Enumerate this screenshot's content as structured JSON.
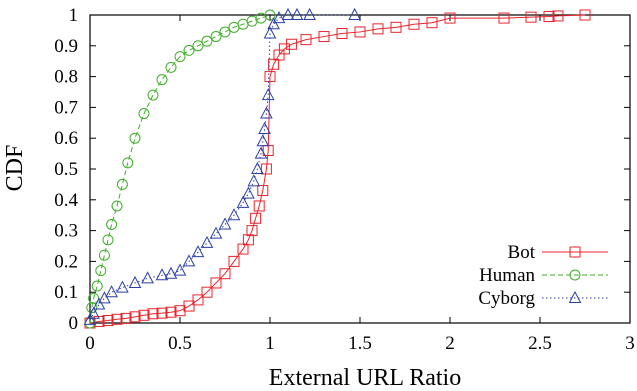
{
  "chart_data": {
    "type": "line",
    "title": "",
    "xlabel": "External URL Ratio",
    "ylabel": "CDF",
    "xlim": [
      0,
      3
    ],
    "ylim": [
      0,
      1
    ],
    "x_ticks": [
      0,
      0.5,
      1,
      1.5,
      2,
      2.5,
      3
    ],
    "x_tick_labels": [
      "0",
      "0.5",
      "1",
      "1.5",
      "2",
      "2.5",
      "3"
    ],
    "y_ticks": [
      0,
      0.1,
      0.2,
      0.3,
      0.4,
      0.5,
      0.6,
      0.7,
      0.8,
      0.9,
      1
    ],
    "y_tick_labels": [
      "0",
      "0.1",
      "0.2",
      "0.3",
      "0.4",
      "0.5",
      "0.6",
      "0.7",
      "0.8",
      "0.9",
      "1"
    ],
    "grid": false,
    "legend_position": "bottom-right",
    "series": [
      {
        "name": "Bot",
        "color": "#e8242b",
        "marker": "square",
        "line_style": "solid",
        "points": [
          [
            0,
            0
          ],
          [
            0.05,
            0.005
          ],
          [
            0.1,
            0.008
          ],
          [
            0.15,
            0.012
          ],
          [
            0.2,
            0.015
          ],
          [
            0.25,
            0.02
          ],
          [
            0.3,
            0.025
          ],
          [
            0.35,
            0.03
          ],
          [
            0.4,
            0.032
          ],
          [
            0.45,
            0.035
          ],
          [
            0.5,
            0.04
          ],
          [
            0.55,
            0.055
          ],
          [
            0.6,
            0.075
          ],
          [
            0.65,
            0.1
          ],
          [
            0.7,
            0.13
          ],
          [
            0.75,
            0.16
          ],
          [
            0.8,
            0.2
          ],
          [
            0.85,
            0.24
          ],
          [
            0.88,
            0.27
          ],
          [
            0.9,
            0.3
          ],
          [
            0.92,
            0.34
          ],
          [
            0.94,
            0.38
          ],
          [
            0.96,
            0.43
          ],
          [
            0.98,
            0.5
          ],
          [
            0.99,
            0.56
          ],
          [
            1.0,
            0.8
          ],
          [
            1.02,
            0.84
          ],
          [
            1.05,
            0.87
          ],
          [
            1.08,
            0.89
          ],
          [
            1.12,
            0.905
          ],
          [
            1.2,
            0.92
          ],
          [
            1.3,
            0.93
          ],
          [
            1.4,
            0.94
          ],
          [
            1.5,
            0.945
          ],
          [
            1.6,
            0.955
          ],
          [
            1.7,
            0.96
          ],
          [
            1.8,
            0.97
          ],
          [
            1.9,
            0.975
          ],
          [
            2.0,
            0.99
          ],
          [
            2.3,
            0.99
          ],
          [
            2.45,
            0.993
          ],
          [
            2.55,
            0.995
          ],
          [
            2.6,
            0.997
          ],
          [
            2.75,
            1.0
          ]
        ]
      },
      {
        "name": "Human",
        "color": "#3fae2a",
        "marker": "circle",
        "line_style": "dashed",
        "points": [
          [
            0,
            0
          ],
          [
            0.01,
            0.05
          ],
          [
            0.02,
            0.08
          ],
          [
            0.04,
            0.12
          ],
          [
            0.06,
            0.17
          ],
          [
            0.08,
            0.22
          ],
          [
            0.1,
            0.27
          ],
          [
            0.12,
            0.32
          ],
          [
            0.15,
            0.38
          ],
          [
            0.18,
            0.45
          ],
          [
            0.21,
            0.52
          ],
          [
            0.25,
            0.6
          ],
          [
            0.3,
            0.68
          ],
          [
            0.35,
            0.74
          ],
          [
            0.4,
            0.79
          ],
          [
            0.45,
            0.83
          ],
          [
            0.5,
            0.865
          ],
          [
            0.55,
            0.885
          ],
          [
            0.6,
            0.9
          ],
          [
            0.65,
            0.915
          ],
          [
            0.7,
            0.93
          ],
          [
            0.75,
            0.945
          ],
          [
            0.8,
            0.96
          ],
          [
            0.85,
            0.97
          ],
          [
            0.9,
            0.98
          ],
          [
            0.95,
            0.99
          ],
          [
            1.0,
            1.0
          ]
        ]
      },
      {
        "name": "Cyborg",
        "color": "#2b3fa8",
        "marker": "triangle",
        "line_style": "dotted",
        "points": [
          [
            0,
            0.01
          ],
          [
            0.02,
            0.03
          ],
          [
            0.05,
            0.06
          ],
          [
            0.08,
            0.08
          ],
          [
            0.12,
            0.1
          ],
          [
            0.18,
            0.115
          ],
          [
            0.25,
            0.13
          ],
          [
            0.32,
            0.145
          ],
          [
            0.4,
            0.155
          ],
          [
            0.45,
            0.16
          ],
          [
            0.5,
            0.17
          ],
          [
            0.55,
            0.2
          ],
          [
            0.6,
            0.23
          ],
          [
            0.65,
            0.26
          ],
          [
            0.7,
            0.29
          ],
          [
            0.75,
            0.32
          ],
          [
            0.8,
            0.35
          ],
          [
            0.85,
            0.39
          ],
          [
            0.88,
            0.42
          ],
          [
            0.91,
            0.46
          ],
          [
            0.93,
            0.5
          ],
          [
            0.95,
            0.55
          ],
          [
            0.96,
            0.59
          ],
          [
            0.97,
            0.63
          ],
          [
            0.98,
            0.68
          ],
          [
            0.99,
            0.74
          ],
          [
            1.0,
            0.94
          ],
          [
            1.02,
            0.97
          ],
          [
            1.05,
            0.99
          ],
          [
            1.1,
            1.0
          ],
          [
            1.15,
            1.0
          ],
          [
            1.22,
            1.0
          ],
          [
            1.47,
            1.0
          ]
        ]
      }
    ]
  }
}
